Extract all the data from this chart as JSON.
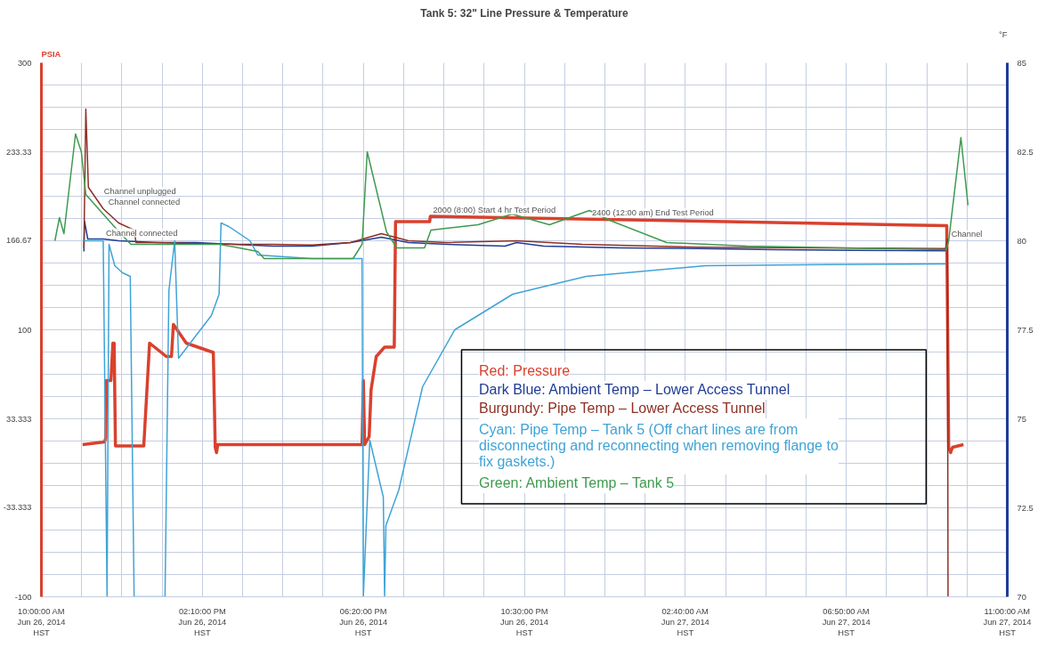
{
  "chart_data": {
    "type": "line",
    "title": "Tank 5: 32\" Line Pressure & Temperature",
    "ylabel": "PSIA",
    "y2label": "°F",
    "xlim": [
      "2014-06-26T10:00",
      "2014-06-27T11:00"
    ],
    "xticks": [
      {
        "value": "2014-06-26T10:00",
        "label": "10:00:00 AM\nJun 26, 2014\nHST"
      },
      {
        "value": "2014-06-26T14:10",
        "label": "02:10:00 PM\nJun 26, 2014\nHST"
      },
      {
        "value": "2014-06-26T18:20",
        "label": "06:20:00 PM\nJun 26, 2014\nHST"
      },
      {
        "value": "2014-06-26T22:30",
        "label": "10:30:00 PM\nJun 26, 2014\nHST"
      },
      {
        "value": "2014-06-27T02:40",
        "label": "02:40:00 AM\nJun 27, 2014\nHST"
      },
      {
        "value": "2014-06-27T06:50",
        "label": "06:50:00 AM\nJun 27, 2014\nHST"
      },
      {
        "value": "2014-06-27T11:00",
        "label": "11:00:00 AM\nJun 27, 2014\nHST"
      }
    ],
    "ylim": [
      -100,
      300
    ],
    "yticks": [
      -100,
      {
        "value": -33.333,
        "label": "-33.333"
      },
      {
        "value": 33.333,
        "label": "33.333"
      },
      100,
      {
        "value": 166.67,
        "label": "166.67"
      },
      {
        "value": 233.33,
        "label": "233.33"
      },
      300
    ],
    "y2lim": [
      70,
      85
    ],
    "y2ticks": [
      70,
      72.5,
      75,
      77.5,
      80,
      82.5,
      85
    ],
    "grid": true,
    "legend": "bottom right",
    "series": [
      {
        "name": "Red: Pressure",
        "color": "#d9412e",
        "x": [
          "2014-06-26T11:04",
          "2014-06-26T11:38",
          "2014-06-26T11:40",
          "2014-06-26T11:41",
          "2014-06-26T11:48",
          "2014-06-26T11:51",
          "2014-06-26T11:53",
          "2014-06-26T11:55",
          "2014-06-26T12:39",
          "2014-06-26T12:48",
          "2014-06-26T13:14",
          "2014-06-26T13:22",
          "2014-06-26T13:25",
          "2014-06-26T13:45",
          "2014-06-26T14:27",
          "2014-06-26T14:30",
          "2014-06-26T14:32",
          "2014-06-26T14:34",
          "2014-06-26T18:18",
          "2014-06-26T18:20",
          "2014-06-26T18:22",
          "2014-06-26T18:29",
          "2014-06-26T18:32",
          "2014-06-26T18:40",
          "2014-06-26T18:53",
          "2014-06-26T19:08",
          "2014-06-26T19:10",
          "2014-06-26T20:03",
          "2014-06-26T20:04",
          "2014-06-27T09:26",
          "2014-06-27T09:29",
          "2014-06-27T09:32",
          "2014-06-27T09:35",
          "2014-06-27T09:52"
        ],
        "values": [
          14,
          16,
          19,
          62,
          62,
          90,
          90,
          13,
          13,
          90,
          80,
          80,
          104,
          90,
          83,
          12,
          8,
          14,
          14,
          62,
          14,
          20,
          55,
          80,
          87,
          87,
          181,
          181,
          185,
          178,
          12,
          8,
          12,
          14
        ]
      },
      {
        "name": "Dark Blue: Ambient Temp – Lower Access Tunnel",
        "color": "#1f3c96",
        "axis": "y2",
        "x": [
          "2014-06-26T11:06",
          "2014-06-26T11:07",
          "2014-06-26T11:12",
          "2014-06-26T11:36",
          "2014-06-26T12:00",
          "2014-06-26T13:00",
          "2014-06-26T14:00",
          "2014-06-26T15:00",
          "2014-06-26T16:00",
          "2014-06-26T17:00",
          "2014-06-26T18:00",
          "2014-06-26T18:48",
          "2014-06-26T19:30",
          "2014-06-26T20:30",
          "2014-06-26T22:00",
          "2014-06-26T22:18",
          "2014-06-26T23:00",
          "2014-06-27T01:00",
          "2014-06-27T03:00",
          "2014-06-27T05:00",
          "2014-06-27T07:00",
          "2014-06-27T09:24"
        ],
        "values": [
          79.7,
          80.55,
          80.05,
          80.05,
          80.0,
          79.95,
          79.95,
          79.9,
          79.85,
          79.85,
          79.95,
          80.1,
          79.95,
          79.9,
          79.85,
          79.95,
          79.85,
          79.8,
          79.78,
          79.75,
          79.73,
          79.72
        ]
      },
      {
        "name": "Burgundy: Pipe Temp – Lower Access Tunnel",
        "color": "#8e3024",
        "axis": "y2",
        "x": [
          "2014-06-26T11:06",
          "2014-06-26T11:09",
          "2014-06-26T11:13",
          "2014-06-26T11:36",
          "2014-06-26T12:00",
          "2014-06-26T12:24",
          "2014-06-26T12:27",
          "2014-06-26T13:00",
          "2014-06-26T14:00",
          "2014-06-26T15:00",
          "2014-06-26T16:00",
          "2014-06-26T17:00",
          "2014-06-26T18:00",
          "2014-06-26T18:48",
          "2014-06-26T19:30",
          "2014-06-26T20:30",
          "2014-06-26T22:18",
          "2014-06-27T00:00",
          "2014-06-27T03:00",
          "2014-06-27T06:00",
          "2014-06-27T09:24",
          "2014-06-27T09:27",
          "2014-06-27T09:28"
        ],
        "values": [
          79.8,
          83.7,
          81.5,
          80.9,
          80.5,
          80.3,
          79.95,
          79.95,
          79.92,
          79.9,
          79.9,
          79.88,
          79.95,
          80.2,
          80.0,
          79.95,
          80.0,
          79.9,
          79.82,
          79.8,
          79.78,
          80.05,
          70
        ]
      },
      {
        "name": "Cyan: Pipe Temp – Tank 5 (Off chart lines are from disconnecting and reconnecting when removing flange to fix gaskets.)",
        "color": "#3fa3d6",
        "axis": "y2",
        "x": [
          "2014-06-26T11:06",
          "2014-06-26T11:36",
          "2014-06-26T11:42",
          "2014-06-26T11:45",
          "2014-06-26T11:54",
          "2014-06-26T12:06",
          "2014-06-26T12:18",
          "2014-06-26T12:24",
          "2014-06-26T13:12",
          "2014-06-26T13:18",
          "2014-06-26T13:27",
          "2014-06-26T13:33",
          "2014-06-26T14:24",
          "2014-06-26T14:36",
          "2014-06-26T14:39",
          "2014-06-26T14:51",
          "2014-06-26T15:24",
          "2014-06-26T15:36",
          "2014-06-26T17:00",
          "2014-06-26T18:18",
          "2014-06-26T18:20",
          "2014-06-26T18:30",
          "2014-06-26T18:51",
          "2014-06-26T18:53",
          "2014-06-26T18:55",
          "2014-06-26T19:15",
          "2014-06-26T19:52",
          "2014-06-26T20:42",
          "2014-06-26T22:12",
          "2014-06-27T00:06",
          "2014-06-27T03:12",
          "2014-06-27T06:18",
          "2014-06-27T09:24"
        ],
        "values": [
          80.0,
          80.0,
          70,
          79.9,
          79.3,
          79.1,
          79.0,
          70,
          70,
          78.6,
          80.0,
          76.7,
          77.9,
          78.5,
          80.5,
          80.4,
          80.0,
          79.6,
          79.5,
          79.5,
          70,
          74.4,
          72.8,
          70,
          72.0,
          73.0,
          75.9,
          77.5,
          78.5,
          79.0,
          79.3,
          79.33,
          79.35
        ]
      },
      {
        "name": "Green: Ambient Temp – Tank 5",
        "color": "#3f9a4f",
        "axis": "y2",
        "x": [
          "2014-06-26T10:21",
          "2014-06-26T10:28",
          "2014-06-26T10:35",
          "2014-06-26T10:53",
          "2014-06-26T11:02",
          "2014-06-26T11:09",
          "2014-06-26T11:58",
          "2014-06-26T12:19",
          "2014-06-26T14:37",
          "2014-06-26T15:36",
          "2014-06-26T15:46",
          "2014-06-26T18:04",
          "2014-06-26T18:18",
          "2014-06-26T18:26",
          "2014-06-26T18:56",
          "2014-06-26T19:12",
          "2014-06-26T19:55",
          "2014-06-26T20:05",
          "2014-06-26T21:18",
          "2014-06-26T22:11",
          "2014-06-26T23:09",
          "2014-06-27T00:11",
          "2014-06-27T00:46",
          "2014-06-27T02:11",
          "2014-06-27T04:16",
          "2014-06-27T09:25",
          "2014-06-27T09:29",
          "2014-06-27T09:48",
          "2014-06-27T09:59"
        ],
        "values": [
          80.0,
          80.65,
          80.2,
          83.0,
          82.5,
          81.3,
          80.3,
          79.9,
          79.9,
          79.7,
          79.5,
          79.5,
          79.9,
          82.5,
          80.25,
          79.8,
          79.8,
          80.3,
          80.45,
          80.75,
          80.45,
          80.85,
          80.55,
          79.95,
          79.85,
          79.75,
          80.0,
          82.9,
          81.0
        ]
      }
    ],
    "annotations": [
      {
        "text": "Channel unplugged",
        "x": "2014-06-26T11:33",
        "y": 199
      },
      {
        "text": "Channel connected",
        "x": "2014-06-26T11:40",
        "y": 191
      },
      {
        "text": "Channel connected",
        "x": "2014-06-26T11:36",
        "y": 168
      },
      {
        "text": "2000 (8:00) Start 4 hr Test Period",
        "x": "2014-06-26T20:04",
        "y": 185
      },
      {
        "text": "2400 (12:00 am) End Test Period",
        "x": "2014-06-27T00:11",
        "y": 183
      },
      {
        "text": "Channel",
        "x": "2014-06-27T09:29",
        "y": 166.67
      }
    ]
  }
}
